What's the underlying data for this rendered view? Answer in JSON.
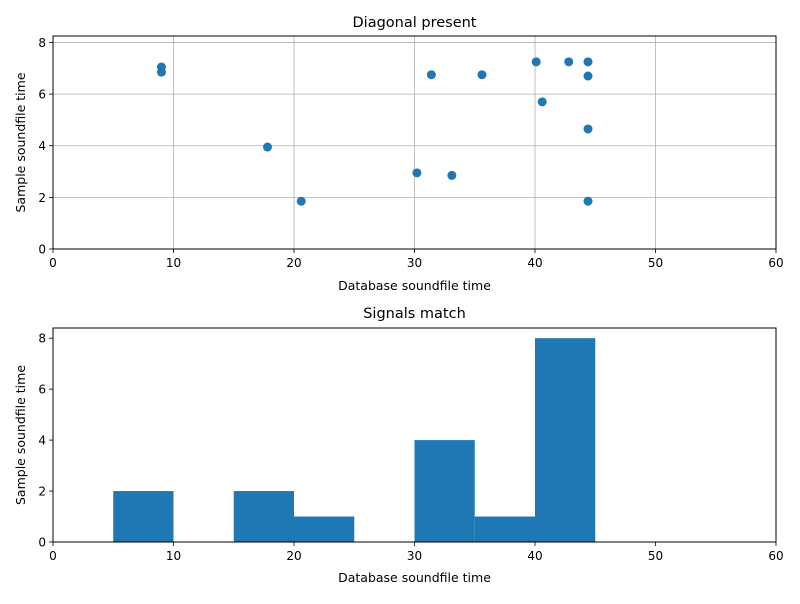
{
  "chart_data": [
    {
      "type": "scatter",
      "title": "Diagonal present",
      "xlabel": "Database soundfile time",
      "ylabel": "Sample soundfile time",
      "xlim": [
        0,
        60
      ],
      "ylim": [
        0,
        8.25
      ],
      "xticks": [
        "0",
        "10",
        "20",
        "30",
        "40",
        "50",
        "60"
      ],
      "yticks": [
        "0",
        "2",
        "4",
        "6",
        "8"
      ],
      "grid": true,
      "color": "#1f77b4",
      "points": [
        {
          "x": 9.0,
          "y": 7.05
        },
        {
          "x": 9.0,
          "y": 6.85
        },
        {
          "x": 17.8,
          "y": 3.95
        },
        {
          "x": 20.6,
          "y": 1.85
        },
        {
          "x": 30.2,
          "y": 2.95
        },
        {
          "x": 31.4,
          "y": 6.75
        },
        {
          "x": 33.1,
          "y": 2.85
        },
        {
          "x": 35.6,
          "y": 6.75
        },
        {
          "x": 40.1,
          "y": 7.25
        },
        {
          "x": 40.6,
          "y": 5.7
        },
        {
          "x": 42.8,
          "y": 7.25
        },
        {
          "x": 44.4,
          "y": 7.25
        },
        {
          "x": 44.4,
          "y": 6.7
        },
        {
          "x": 44.4,
          "y": 4.65
        },
        {
          "x": 44.4,
          "y": 1.85
        }
      ]
    },
    {
      "type": "bar",
      "title": "Signals match",
      "xlabel": "Database soundfile time",
      "ylabel": "Sample soundfile time",
      "xlim": [
        0,
        60
      ],
      "ylim": [
        0,
        8.4
      ],
      "xticks": [
        "0",
        "10",
        "20",
        "30",
        "40",
        "50",
        "60"
      ],
      "yticks": [
        "0",
        "2",
        "4",
        "6",
        "8"
      ],
      "grid": false,
      "color": "#1f77b4",
      "bins": [
        {
          "start": 5,
          "end": 10,
          "value": 2
        },
        {
          "start": 15,
          "end": 20,
          "value": 2
        },
        {
          "start": 20,
          "end": 25,
          "value": 1
        },
        {
          "start": 30,
          "end": 35,
          "value": 4
        },
        {
          "start": 35,
          "end": 40,
          "value": 1
        },
        {
          "start": 40,
          "end": 45,
          "value": 8
        }
      ]
    }
  ]
}
